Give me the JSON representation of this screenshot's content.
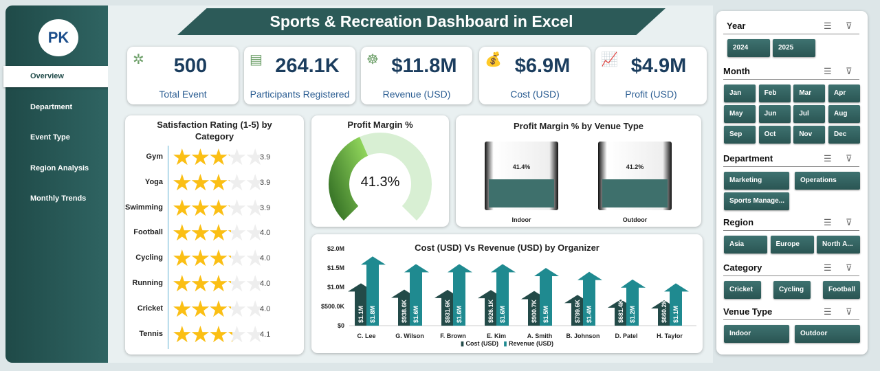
{
  "header": {
    "title": "Sports & Recreation Dashboard in Excel"
  },
  "sidebar": {
    "logo_text": "PK",
    "items": [
      {
        "label": "Overview",
        "active": true
      },
      {
        "label": "Department"
      },
      {
        "label": "Event Type"
      },
      {
        "label": "Region Analysis"
      },
      {
        "label": "Monthly Trends"
      }
    ]
  },
  "kpis": [
    {
      "value": "500",
      "label": "Total Event",
      "icon": "network-people-icon"
    },
    {
      "value": "264.1K",
      "label": "Participants Registered",
      "icon": "clipboard-icon"
    },
    {
      "value": "$11.8M",
      "label": "Revenue (USD)",
      "icon": "hand-coin-icon"
    },
    {
      "value": "$6.9M",
      "label": "Cost (USD)",
      "icon": "money-bag-icon"
    },
    {
      "value": "$4.9M",
      "label": "Profit (USD)",
      "icon": "growth-chart-icon"
    }
  ],
  "satisfaction": {
    "title": "Satisfaction Rating (1-5) by Category",
    "max": 5,
    "items": [
      {
        "category": "Gym",
        "value": 3.9,
        "label": "3.9"
      },
      {
        "category": "Yoga",
        "value": 3.9,
        "label": "3.9"
      },
      {
        "category": "Swimming",
        "value": 3.9,
        "label": "3.9"
      },
      {
        "category": "Football",
        "value": 4.0,
        "label": "4.0"
      },
      {
        "category": "Cycling",
        "value": 4.0,
        "label": "4.0"
      },
      {
        "category": "Running",
        "value": 4.0,
        "label": "4.0"
      },
      {
        "category": "Cricket",
        "value": 4.0,
        "label": "4.0"
      },
      {
        "category": "Tennis",
        "value": 4.1,
        "label": "4.1"
      }
    ]
  },
  "profit_margin": {
    "title": "Profit Margin %",
    "value": 41.3,
    "label": "41.3%"
  },
  "venue": {
    "title": "Profit Margin % by Venue Type",
    "items": [
      {
        "name": "Indoor",
        "value": 41.4,
        "label": "41.4%"
      },
      {
        "name": "Outdoor",
        "value": 41.2,
        "label": "41.2%"
      }
    ]
  },
  "chart_data": {
    "type": "bar",
    "title": "Cost (USD) Vs Revenue (USD) by Organizer",
    "categories": [
      "C. Lee",
      "G. Wilson",
      "F. Brown",
      "E. Kim",
      "A. Smith",
      "B. Johnson",
      "D. Patel",
      "H. Taylor"
    ],
    "ylim": [
      0,
      2000000
    ],
    "yticks": [
      "$0",
      "$500.0K",
      "$1.0M",
      "$1.5M",
      "$2.0M"
    ],
    "legend": "bottom",
    "series": [
      {
        "name": "Cost (USD)",
        "color": "#234a48",
        "values": [
          1100000,
          938600,
          931600,
          926100,
          900700,
          799600,
          681400,
          660200
        ],
        "labels": [
          "$1.1M",
          "$938.6K",
          "$931.6K",
          "$926.1K",
          "$900.7K",
          "$799.6K",
          "$681.4K",
          "$660.2K"
        ]
      },
      {
        "name": "Revenue (USD)",
        "color": "#1f8a90",
        "values": [
          1800000,
          1600000,
          1600000,
          1600000,
          1500000,
          1400000,
          1200000,
          1100000
        ],
        "labels": [
          "$1.8M",
          "$1.6M",
          "$1.6M",
          "$1.6M",
          "$1.5M",
          "$1.4M",
          "$1.2M",
          "$1.1M"
        ]
      }
    ]
  },
  "slicers": [
    {
      "title": "Year",
      "items": [
        "2024",
        "2025"
      ]
    },
    {
      "title": "Month",
      "items": [
        "Jan",
        "Feb",
        "Mar",
        "Apr",
        "May",
        "Jun",
        "Jul",
        "Aug",
        "Sep",
        "Oct",
        "Nov",
        "Dec"
      ]
    },
    {
      "title": "Department",
      "items": [
        "Marketing",
        "Operations",
        "Sports Manage..."
      ]
    },
    {
      "title": "Region",
      "items": [
        "Asia",
        "Europe",
        "North A..."
      ]
    },
    {
      "title": "Category",
      "items": [
        "Cricket",
        "Cycling",
        "Football"
      ]
    },
    {
      "title": "Venue Type",
      "items": [
        "Indoor",
        "Outdoor"
      ]
    }
  ]
}
